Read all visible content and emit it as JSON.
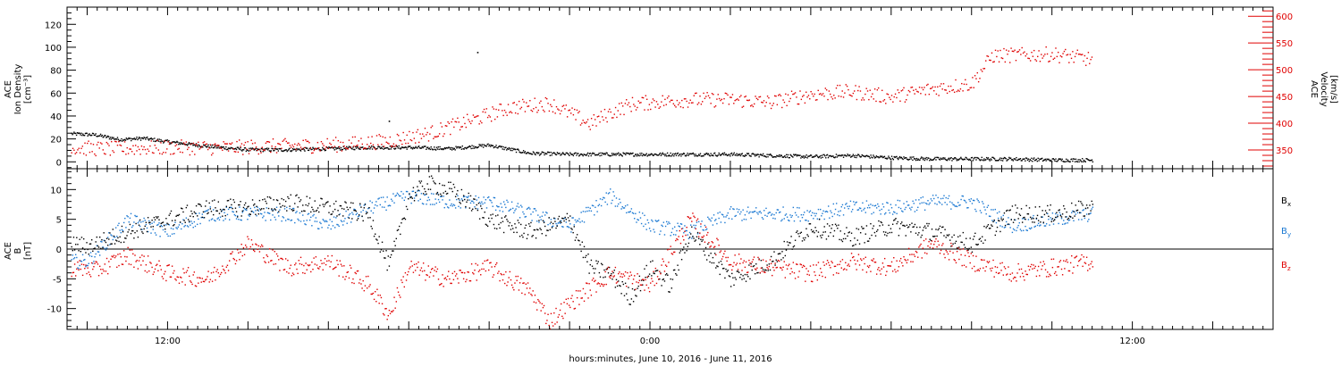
{
  "x_axis": {
    "xlabel": "hours:minutes, June 10, 2016 - June 11, 2016",
    "range_hours": [
      9.5,
      39.5
    ],
    "tick_labels": [
      {
        "hour": 12,
        "label": "12:00"
      },
      {
        "hour": 24,
        "label": "0:00"
      },
      {
        "hour": 36,
        "label": "12:00"
      }
    ],
    "major_ticks_every_hours": 2
  },
  "chart_data": [
    {
      "type": "scatter",
      "panel": "top",
      "ylabel": [
        "ACE",
        "Ion Density",
        "[cm⁻³]"
      ],
      "ylim": [
        -6,
        135
      ],
      "ytick_labels": [
        "0",
        "20",
        "40",
        "60",
        "80",
        "100",
        "120"
      ],
      "ytick_values": [
        0,
        20,
        40,
        60,
        80,
        100,
        120
      ],
      "y2label": [
        "ACE",
        "Velocity",
        "[km/s]"
      ],
      "y2lim": [
        315,
        617
      ],
      "y2tick_labels": [
        "350",
        "400",
        "450",
        "500",
        "550",
        "600"
      ],
      "y2tick_values": [
        350,
        400,
        450,
        500,
        550,
        600
      ],
      "grid": false,
      "series": [
        {
          "name": "",
          "axis": "left",
          "color": "#000000",
          "x": [
            9.6,
            10.2,
            10.8,
            11.4,
            12.0,
            13.0,
            14.0,
            15.0,
            16.0,
            17.0,
            18.0,
            19.0,
            20.0,
            21.0,
            22.0,
            23.0,
            24.0,
            25.0,
            26.0,
            27.0,
            28.0,
            29.0,
            30.0,
            31.0,
            32.0,
            33.0,
            34.0,
            35.0
          ],
          "y": [
            25,
            24,
            20,
            21,
            18,
            14,
            11,
            11,
            12,
            13,
            13,
            12,
            15,
            8,
            7,
            7,
            7,
            7,
            7,
            6,
            5,
            6,
            4,
            3,
            3,
            3,
            2,
            2
          ],
          "outliers": [
            {
              "x": 19.7,
              "y": 96
            },
            {
              "x": 17.5,
              "y": 36
            }
          ]
        },
        {
          "name": "",
          "axis": "right",
          "color": "#e00000",
          "x": [
            9.6,
            10.5,
            11.5,
            12.5,
            13.5,
            14.5,
            15.5,
            16.5,
            17.5,
            18.5,
            19.5,
            20.5,
            21.5,
            22.5,
            23.0,
            23.5,
            24.0,
            25.0,
            26.0,
            27.0,
            28.0,
            29.0,
            30.0,
            31.0,
            32.0,
            32.5,
            33.0,
            34.0,
            35.0
          ],
          "y": [
            355,
            353,
            355,
            356,
            355,
            358,
            359,
            362,
            368,
            382,
            405,
            430,
            438,
            400,
            420,
            436,
            440,
            445,
            445,
            440,
            455,
            460,
            450,
            465,
            475,
            527,
            528,
            530,
            520
          ]
        }
      ]
    },
    {
      "type": "scatter",
      "panel": "bottom",
      "ylabel": [
        "ACE",
        "B",
        "[nT]"
      ],
      "ylim": [
        -13.5,
        13.5
      ],
      "ytick_labels": [
        "-10",
        "-5",
        "0",
        "5",
        "10"
      ],
      "ytick_values": [
        -10,
        -5,
        0,
        5,
        10
      ],
      "grid": false,
      "zero_line": true,
      "series": [
        {
          "name": "Bx",
          "color": "#000000",
          "x": [
            9.6,
            10.0,
            11.0,
            12.0,
            13.0,
            14.0,
            15.0,
            16.0,
            17.0,
            17.5,
            18.0,
            18.5,
            19.0,
            19.5,
            20.0,
            21.0,
            22.0,
            22.5,
            23.0,
            23.5,
            24.0,
            24.5,
            25.0,
            26.0,
            27.0,
            28.0,
            29.0,
            30.0,
            31.0,
            32.0,
            33.0,
            34.0,
            35.0
          ],
          "y": [
            1,
            0.5,
            3,
            5,
            7,
            7,
            8,
            7,
            6,
            -3,
            9,
            11,
            10,
            8,
            5,
            3,
            5,
            -3,
            -4,
            -8,
            -3,
            -6,
            3,
            -5,
            -2,
            4,
            2,
            4,
            3,
            1,
            6,
            6,
            7
          ]
        },
        {
          "name": "By",
          "color": "#1a78d2",
          "x": [
            9.6,
            10.0,
            11.0,
            12.0,
            13.0,
            14.0,
            15.0,
            16.0,
            17.0,
            18.0,
            19.0,
            20.0,
            21.0,
            22.0,
            23.0,
            24.0,
            25.0,
            26.0,
            27.0,
            28.0,
            29.0,
            30.0,
            31.0,
            32.0,
            33.0,
            34.0,
            35.0
          ],
          "y": [
            -2,
            -2,
            5,
            3,
            6,
            6,
            6,
            4,
            7,
            9,
            8,
            8,
            6,
            4,
            9,
            4,
            3,
            6,
            6,
            6,
            7,
            7,
            8,
            8,
            4,
            5,
            6
          ]
        },
        {
          "name": "Bz",
          "color": "#e00000",
          "x": [
            9.6,
            10.2,
            11.0,
            12.0,
            13.0,
            14.0,
            15.0,
            16.0,
            17.0,
            17.5,
            18.0,
            19.0,
            20.0,
            21.0,
            21.5,
            22.0,
            23.0,
            24.0,
            25.0,
            26.0,
            27.0,
            28.0,
            29.0,
            30.0,
            31.0,
            32.0,
            33.0,
            34.0,
            35.0
          ],
          "y": [
            -3,
            -3.5,
            -1,
            -4,
            -5,
            1,
            -3,
            -2,
            -6,
            -11,
            -3,
            -5,
            -3,
            -7,
            -12,
            -9,
            -4,
            -6,
            5,
            -2,
            -3,
            -4,
            -2,
            -3,
            1,
            -2,
            -4,
            -3,
            -2
          ]
        }
      ]
    }
  ],
  "legend_bottom": {
    "bx_main": "B",
    "bx_sub": "x",
    "by_main": "B",
    "by_sub": "y",
    "bz_main": "B",
    "bz_sub": "z"
  },
  "colors": {
    "axis": "#000000",
    "density": "#000000",
    "velocity": "#e00000",
    "bx": "#000000",
    "by": "#1a78d2",
    "bz": "#e00000"
  }
}
